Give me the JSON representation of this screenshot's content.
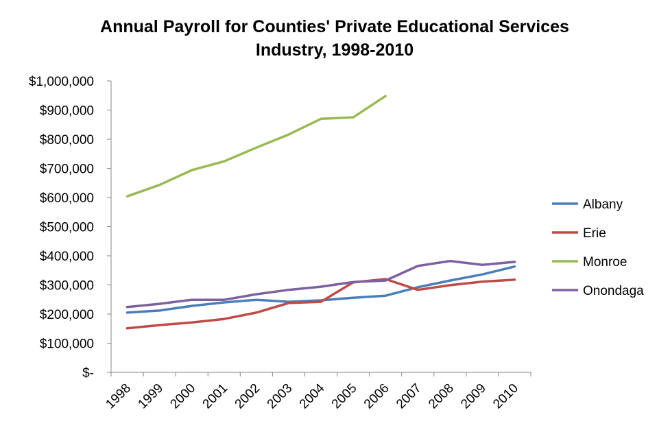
{
  "chart_data": {
    "type": "line",
    "title_lines": [
      "Annual Payroll for Counties' Private Educational Services",
      "Industry, 1998-2010"
    ],
    "xlabel": "",
    "ylabel": "",
    "categories": [
      "1998",
      "1999",
      "2000",
      "2001",
      "2002",
      "2003",
      "2004",
      "2005",
      "2006",
      "2007",
      "2008",
      "2009",
      "2010"
    ],
    "ylim": [
      0,
      1000000
    ],
    "yticks": [
      0,
      100000,
      200000,
      300000,
      400000,
      500000,
      600000,
      700000,
      800000,
      900000,
      1000000
    ],
    "ytick_labels": [
      "$-",
      "$100,000",
      "$200,000",
      "$300,000",
      "$400,000",
      "$500,000",
      "$600,000",
      "$700,000",
      "$800,000",
      "$900,000",
      "$1,000,000"
    ],
    "grid": false,
    "legend_position": "right",
    "series": [
      {
        "name": "Albany",
        "color": "#4a7ebb",
        "values": [
          205000,
          212000,
          228000,
          240000,
          249000,
          242000,
          247000,
          256000,
          263000,
          292000,
          315000,
          336000,
          363000
        ]
      },
      {
        "name": "Erie",
        "color": "#be4b48",
        "values": [
          151000,
          162000,
          171000,
          183000,
          205000,
          238000,
          242000,
          309000,
          320000,
          283000,
          299000,
          311000,
          318000
        ]
      },
      {
        "name": "Monroe",
        "color": "#98b954",
        "values": [
          604000,
          643000,
          694000,
          724000,
          771000,
          816000,
          870000,
          875000,
          948000,
          null,
          null,
          null,
          null
        ]
      },
      {
        "name": "Onondaga",
        "color": "#7d60a0",
        "values": [
          224000,
          235000,
          249000,
          249000,
          268000,
          283000,
          294000,
          310000,
          315000,
          365000,
          382000,
          369000,
          379000
        ]
      }
    ]
  }
}
